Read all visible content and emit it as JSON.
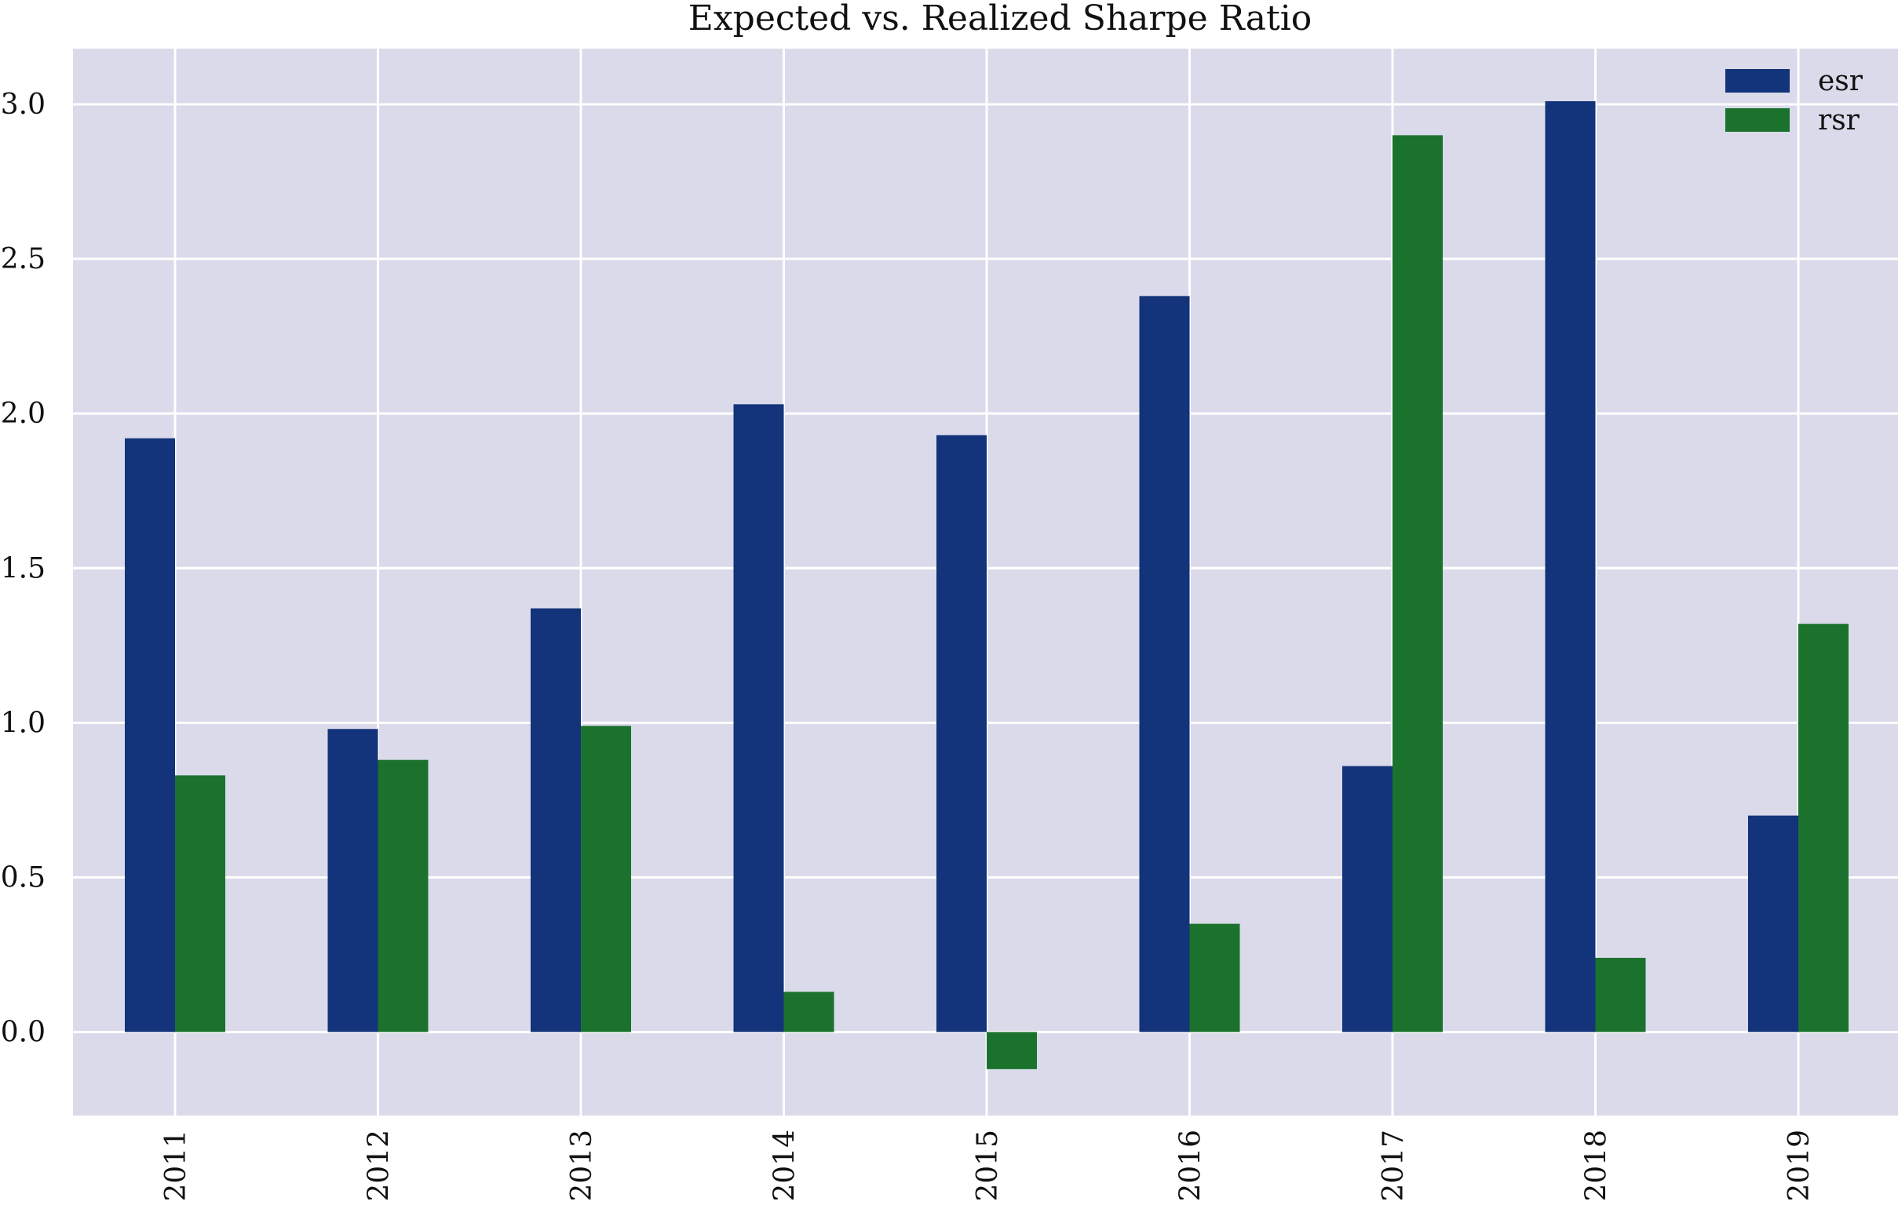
{
  "chart_data": {
    "type": "bar",
    "title": "Expected vs. Realized Sharpe Ratio",
    "xlabel": "",
    "ylabel": "",
    "categories": [
      "2011",
      "2012",
      "2013",
      "2014",
      "2015",
      "2016",
      "2017",
      "2018",
      "2019"
    ],
    "series": [
      {
        "name": "esr",
        "color": "#13337a",
        "values": [
          1.92,
          0.98,
          1.37,
          2.03,
          1.93,
          2.38,
          0.86,
          3.01,
          0.7
        ]
      },
      {
        "name": "rsr",
        "color": "#1a722c",
        "values": [
          0.83,
          0.88,
          0.99,
          0.13,
          -0.12,
          0.35,
          2.9,
          0.24,
          1.32
        ]
      }
    ],
    "yticks": [
      0.0,
      0.5,
      1.0,
      1.5,
      2.0,
      2.5,
      3.0
    ],
    "ytick_labels": [
      "0.0",
      "0.5",
      "1.0",
      "1.5",
      "2.0",
      "2.5",
      "3.0"
    ],
    "ylim": [
      -0.27,
      3.18
    ],
    "grid": true,
    "legend_position": "top-right",
    "plot_background": "#dadaea"
  }
}
